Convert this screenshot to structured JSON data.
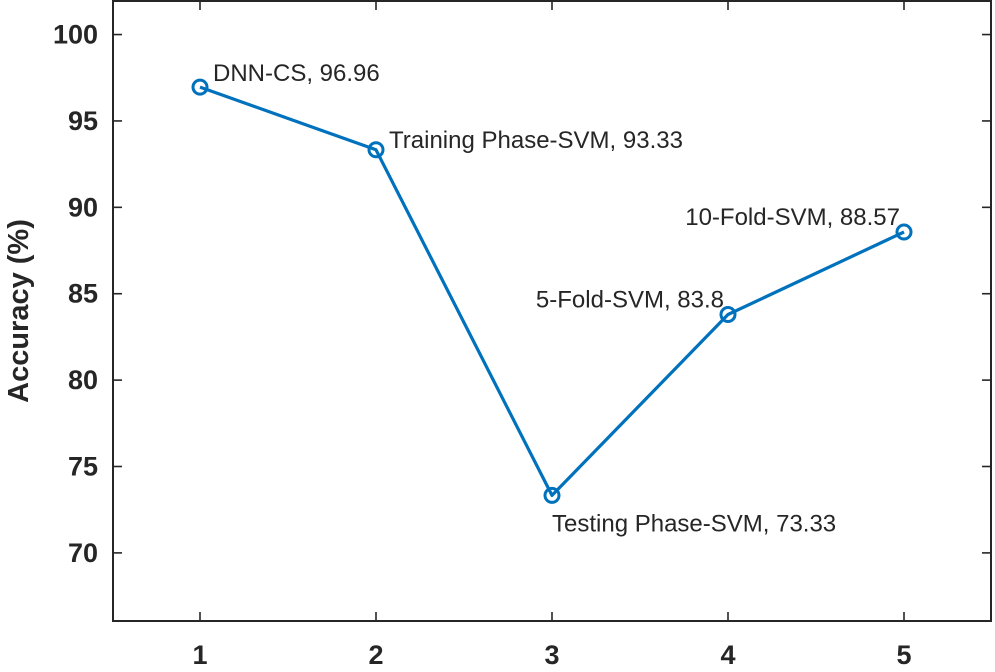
{
  "chart_data": {
    "type": "line",
    "title": "",
    "xlabel": "",
    "ylabel": "Accuracy (%)",
    "x": [
      1,
      2,
      3,
      4,
      5
    ],
    "xlim": [
      0.5,
      5.5
    ],
    "ylim": [
      66,
      102
    ],
    "xticks": [
      1,
      2,
      3,
      4,
      5
    ],
    "yticks": [
      70,
      75,
      80,
      85,
      90,
      95,
      100
    ],
    "grid": false,
    "series": [
      {
        "name": "Accuracy",
        "color": "#0072BD",
        "marker": "circle",
        "values": [
          96.96,
          93.33,
          73.33,
          83.8,
          88.57
        ]
      }
    ],
    "annotations": [
      {
        "x": 1,
        "y": 96.96,
        "text": "DNN-CS, 96.96",
        "placement": "upper-right"
      },
      {
        "x": 2,
        "y": 93.33,
        "text": "Training Phase-SVM, 93.33",
        "placement": "right"
      },
      {
        "x": 3,
        "y": 73.33,
        "text": "Testing Phase-SVM, 73.33",
        "placement": "below-right"
      },
      {
        "x": 4,
        "y": 83.8,
        "text": "5-Fold-SVM, 83.8",
        "placement": "upper-left"
      },
      {
        "x": 5,
        "y": 88.57,
        "text": "10-Fold-SVM, 88.57",
        "placement": "upper-left"
      }
    ]
  }
}
